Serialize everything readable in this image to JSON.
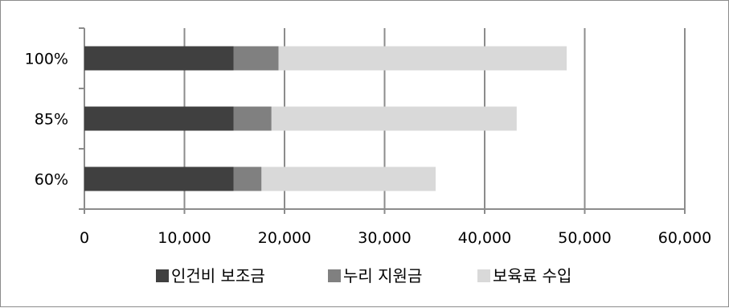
{
  "chart_data": {
    "type": "bar",
    "orientation": "horizontal",
    "stacked": true,
    "title": "",
    "xlabel": "",
    "ylabel": "",
    "categories": [
      "100%",
      "85%",
      "60%"
    ],
    "series": [
      {
        "name": "인건비 보조금",
        "color": "#404040",
        "values": [
          14900,
          14900,
          14900
        ]
      },
      {
        "name": "누리 지원금",
        "color": "#808080",
        "values": [
          4500,
          3800,
          2800
        ]
      },
      {
        "name": "보육료 수입",
        "color": "#d9d9d9",
        "values": [
          28800,
          24500,
          17400
        ]
      }
    ],
    "xlim": [
      0,
      60000
    ],
    "xticks": [
      "0",
      "10,000",
      "20,000",
      "30,000",
      "40,000",
      "50,000",
      "60,000"
    ],
    "grid": "vertical",
    "legend": "bottom"
  }
}
